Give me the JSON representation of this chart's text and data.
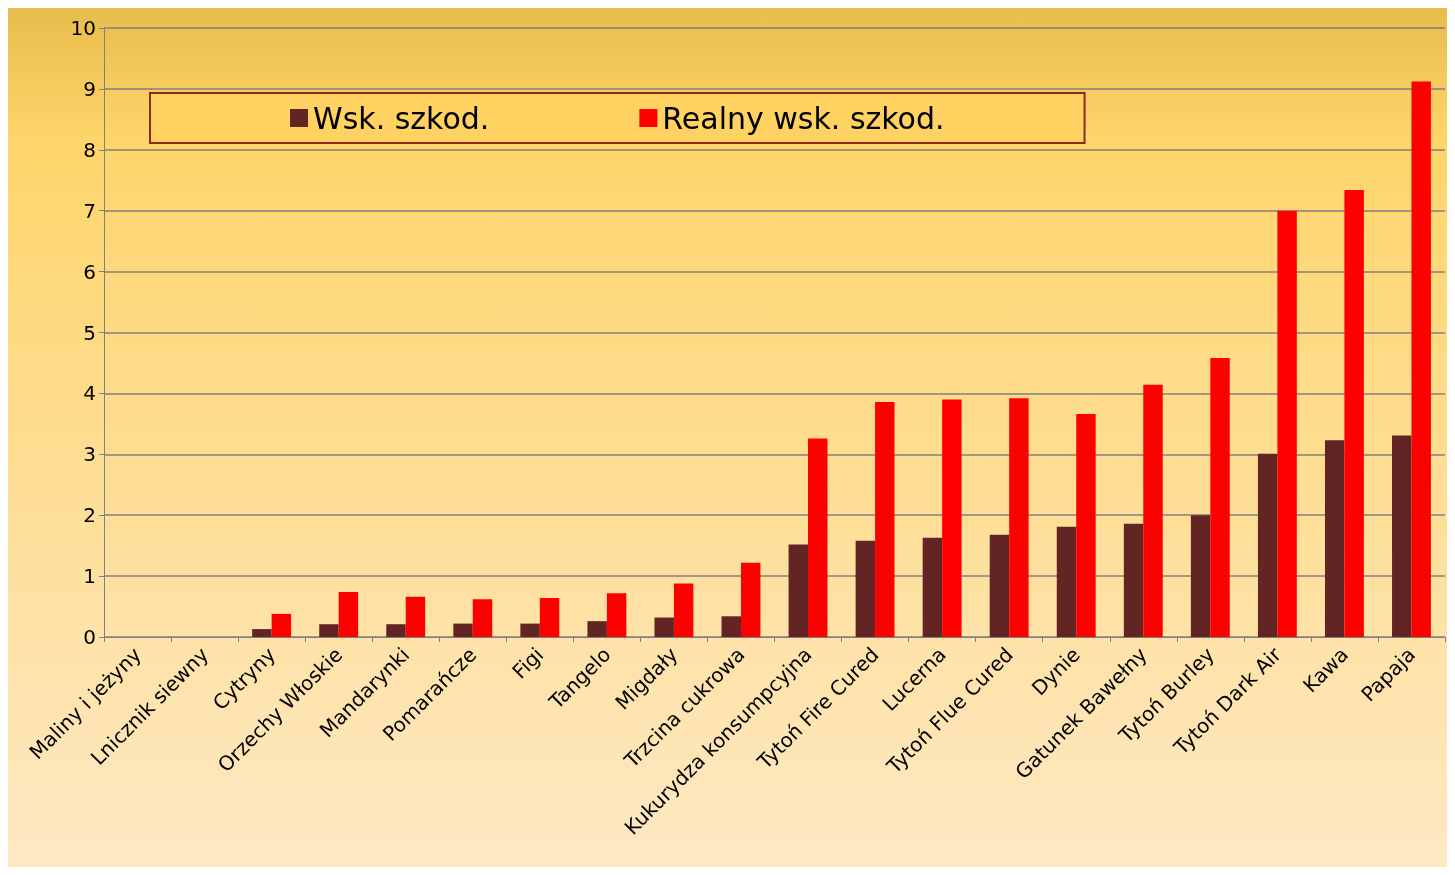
{
  "chart_data": {
    "type": "bar",
    "categories": [
      "Maliny i jeżyny",
      "Lnicznik siewny",
      "Cytryny",
      "Orzechy Włoskie",
      "Mandarynki",
      "Pomarańcze",
      "Figi",
      "Tangelo",
      "Migdały",
      "Trzcina cukrowa",
      "Kukurydza konsumpcyjna",
      "Tytoń Fire Cured",
      "Lucerna",
      "Tytoń Flue Cured",
      "Dynie",
      "Gatunek Bawełny",
      "Tytoń Burley",
      "Tytoń Dark Air",
      "Kawa",
      "Papaja"
    ],
    "series": [
      {
        "name": "Wsk. szkod.",
        "color": "#632523",
        "values": [
          0,
          0,
          0.13,
          0.21,
          0.21,
          0.22,
          0.22,
          0.26,
          0.32,
          0.34,
          1.52,
          1.58,
          1.63,
          1.68,
          1.81,
          1.86,
          2.0,
          3.01,
          3.23,
          3.31
        ]
      },
      {
        "name": "Realny wsk. szkod.",
        "color": "#ff0000",
        "values": [
          0,
          0,
          0.38,
          0.74,
          0.66,
          0.62,
          0.64,
          0.72,
          0.88,
          1.22,
          3.26,
          3.86,
          3.9,
          3.92,
          3.66,
          4.14,
          4.58,
          7.0,
          7.34,
          9.12
        ]
      }
    ],
    "ylim": [
      0,
      10
    ],
    "yticks": [
      0,
      1,
      2,
      3,
      4,
      5,
      6,
      7,
      8,
      9,
      10
    ],
    "grid": "y",
    "legend": "top"
  }
}
